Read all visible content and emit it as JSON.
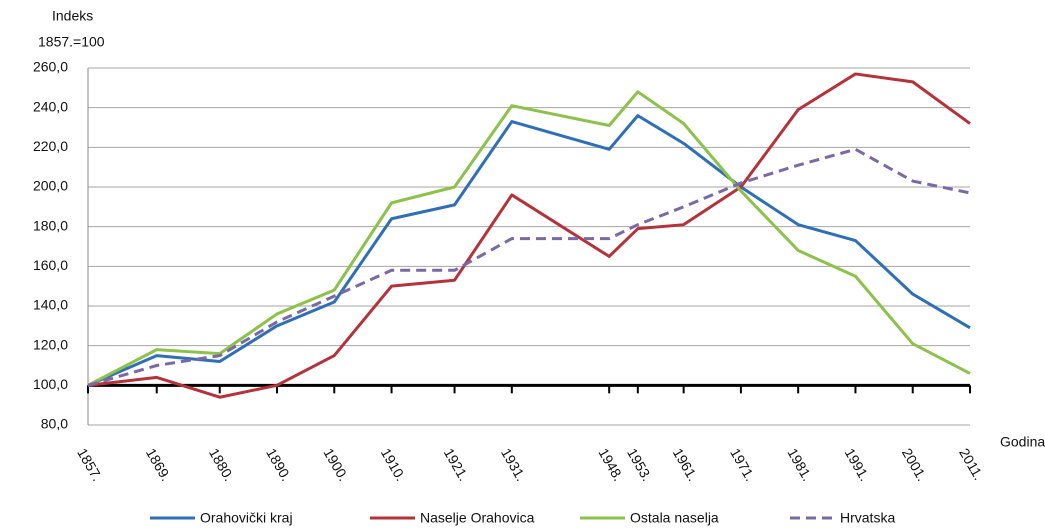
{
  "chart_data": {
    "type": "line",
    "y_label": [
      "Indeks",
      "1857.=100"
    ],
    "x_label": "Godina",
    "x": [
      1857,
      1869,
      1880,
      1890,
      1900,
      1910,
      1921,
      1931,
      1948,
      1953,
      1961,
      1971,
      1981,
      1991,
      2001,
      2011
    ],
    "xlim": [
      1857,
      2011
    ],
    "xticks": [
      {
        "value": 1857,
        "label": "1857."
      },
      {
        "value": 1869,
        "label": "1869."
      },
      {
        "value": 1880,
        "label": "1880."
      },
      {
        "value": 1890,
        "label": "1890."
      },
      {
        "value": 1900,
        "label": "1900."
      },
      {
        "value": 1910,
        "label": "1910."
      },
      {
        "value": 1921,
        "label": "1921."
      },
      {
        "value": 1931,
        "label": "1931."
      },
      {
        "value": 1948,
        "label": "1948."
      },
      {
        "value": 1953,
        "label": "1953."
      },
      {
        "value": 1961,
        "label": "1961."
      },
      {
        "value": 1971,
        "label": "1971."
      },
      {
        "value": 1981,
        "label": "1981."
      },
      {
        "value": 1991,
        "label": "1991."
      },
      {
        "value": 2001,
        "label": "2001."
      },
      {
        "value": 2011,
        "label": "2011."
      }
    ],
    "ylim": [
      80,
      260
    ],
    "yticks": [
      {
        "value": 80,
        "label": "80,0"
      },
      {
        "value": 100,
        "label": "100,0"
      },
      {
        "value": 120,
        "label": "120,0"
      },
      {
        "value": 140,
        "label": "140,0"
      },
      {
        "value": 160,
        "label": "160,0"
      },
      {
        "value": 180,
        "label": "180,0"
      },
      {
        "value": 200,
        "label": "200,0"
      },
      {
        "value": 220,
        "label": "220,0"
      },
      {
        "value": 240,
        "label": "240,0"
      },
      {
        "value": 260,
        "label": "260,0"
      }
    ],
    "grid": true,
    "legend": "bottom",
    "series": [
      {
        "name": "Orahovički kraj",
        "color": "#2e6fb7",
        "dash": false,
        "values": [
          100,
          115,
          112,
          130,
          142,
          184,
          191,
          233,
          219,
          236,
          222,
          200,
          181,
          173,
          146,
          129
        ]
      },
      {
        "name": "Naselje Orahovica",
        "color": "#b5323a",
        "dash": false,
        "values": [
          100,
          104,
          94,
          100,
          115,
          150,
          153,
          196,
          165,
          179,
          181,
          200,
          239,
          257,
          253,
          232
        ]
      },
      {
        "name": "Ostala naselja",
        "color": "#8cc24a",
        "dash": false,
        "values": [
          100,
          118,
          116,
          136,
          148,
          192,
          200,
          241,
          231,
          248,
          232,
          198,
          168,
          155,
          121,
          106
        ]
      },
      {
        "name": "Hrvatska",
        "color": "#7b68a6",
        "dash": true,
        "values": [
          100,
          110,
          115,
          132,
          145,
          158,
          158,
          174,
          174,
          181,
          190,
          202,
          211,
          219,
          203,
          197
        ]
      }
    ]
  }
}
